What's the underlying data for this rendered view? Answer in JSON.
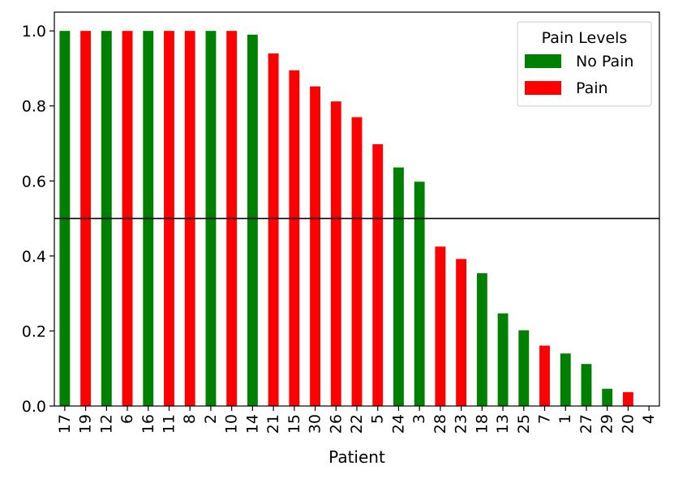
{
  "chart_data": {
    "type": "bar",
    "title": "",
    "xlabel": "Patient",
    "ylabel": "",
    "categories": [
      "17",
      "19",
      "12",
      "6",
      "16",
      "11",
      "8",
      "2",
      "10",
      "14",
      "21",
      "15",
      "30",
      "26",
      "22",
      "5",
      "24",
      "3",
      "28",
      "23",
      "18",
      "13",
      "25",
      "7",
      "1",
      "27",
      "29",
      "20",
      "4"
    ],
    "values": [
      1.0,
      1.0,
      1.0,
      1.0,
      1.0,
      1.0,
      1.0,
      1.0,
      1.0,
      0.99,
      0.94,
      0.895,
      0.852,
      0.812,
      0.77,
      0.698,
      0.636,
      0.598,
      0.425,
      0.392,
      0.354,
      0.247,
      0.202,
      0.161,
      0.14,
      0.112,
      0.046,
      0.037,
      0.0
    ],
    "classes": [
      "No Pain",
      "Pain",
      "No Pain",
      "Pain",
      "No Pain",
      "Pain",
      "Pain",
      "No Pain",
      "Pain",
      "No Pain",
      "Pain",
      "Pain",
      "Pain",
      "Pain",
      "Pain",
      "Pain",
      "No Pain",
      "No Pain",
      "Pain",
      "Pain",
      "No Pain",
      "No Pain",
      "No Pain",
      "Pain",
      "No Pain",
      "No Pain",
      "No Pain",
      "Pain",
      "No Pain"
    ],
    "ylim": [
      0.0,
      1.05
    ],
    "yticks": [
      "0.0",
      "0.2",
      "0.4",
      "0.6",
      "0.8",
      "1.0"
    ],
    "threshold": 0.5,
    "grid": false,
    "legend": {
      "title": "Pain Levels",
      "placement": "top-right",
      "items": [
        {
          "label": "No Pain",
          "color": "#008000"
        },
        {
          "label": "Pain",
          "color": "#ff0000"
        }
      ]
    },
    "colors": {
      "No Pain": "#008000",
      "Pain": "#ff0000"
    }
  }
}
